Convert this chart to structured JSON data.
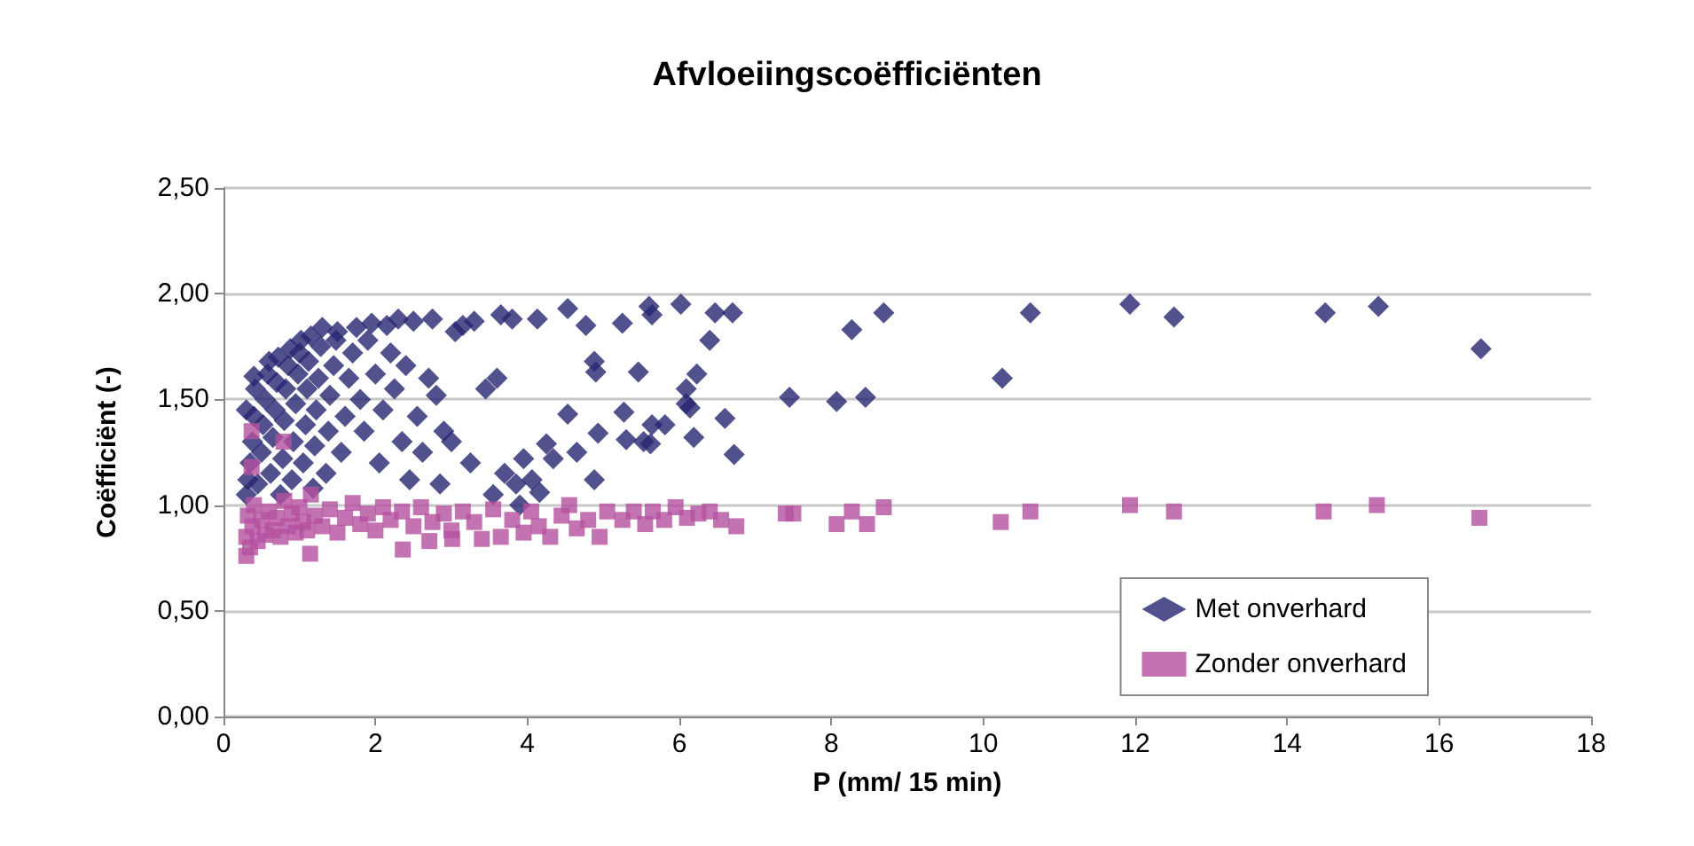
{
  "chart_data": {
    "type": "scatter",
    "title": "Afvloeiingscoëfficiënten",
    "xlabel": "P (mm/ 15 min)",
    "ylabel": "Coëfficiënt (-)",
    "xlim": [
      0,
      18
    ],
    "xticks": [
      0,
      2,
      4,
      6,
      8,
      10,
      12,
      14,
      16,
      18
    ],
    "ylim": [
      0,
      2.5
    ],
    "yticks": [
      {
        "value": 0,
        "label": "0,00"
      },
      {
        "value": 0.5,
        "label": "0,50"
      },
      {
        "value": 1,
        "label": "1,00"
      },
      {
        "value": 1.5,
        "label": "1,50"
      },
      {
        "value": 2,
        "label": "2,00"
      },
      {
        "value": 2.5,
        "label": "2,50"
      }
    ],
    "grid": "y",
    "legend": "bottom right",
    "series": [
      {
        "name": "Met onverhard",
        "color": "#262770",
        "marker": "diamond",
        "x": [
          0.3,
          0.3,
          0.32,
          0.35,
          0.38,
          0.4,
          0.42,
          0.4,
          0.45,
          0.5,
          0.52,
          0.55,
          0.58,
          0.6,
          0.62,
          0.65,
          0.68,
          0.7,
          0.72,
          0.75,
          0.78,
          0.8,
          0.82,
          0.85,
          0.88,
          0.9,
          0.92,
          0.95,
          0.98,
          1.0,
          1.02,
          1.05,
          1.08,
          1.1,
          1.12,
          1.15,
          1.18,
          1.2,
          1.22,
          1.25,
          1.28,
          1.3,
          1.35,
          1.38,
          1.4,
          1.45,
          1.48,
          1.5,
          1.55,
          1.6,
          1.65,
          1.7,
          1.75,
          1.8,
          1.85,
          1.9,
          1.95,
          2.0,
          2.05,
          2.1,
          2.15,
          2.2,
          2.25,
          2.3,
          2.35,
          2.4,
          2.45,
          2.5,
          2.55,
          2.62,
          2.7,
          2.75,
          2.8,
          2.85,
          2.9,
          3.0,
          3.05,
          3.15,
          3.25,
          3.3,
          3.45,
          3.55,
          3.6,
          3.65,
          3.7,
          3.8,
          3.85,
          3.9,
          3.95,
          4.06,
          4.13,
          4.16,
          4.25,
          4.34,
          4.53,
          4.53,
          4.65,
          4.77,
          4.88,
          4.88,
          4.9,
          4.93,
          5.25,
          5.27,
          5.3,
          5.46,
          5.53,
          5.6,
          5.62,
          5.64,
          5.64,
          5.81,
          6.02,
          6.09,
          6.09,
          6.14,
          6.19,
          6.23,
          6.4,
          6.47,
          6.6,
          6.7,
          6.72,
          7.45,
          8.07,
          8.27,
          8.45,
          8.69,
          10.25,
          10.62,
          11.93,
          12.51,
          14.5,
          15.2,
          16.55
        ],
        "values": [
          1.05,
          1.45,
          1.12,
          1.2,
          1.3,
          1.42,
          1.55,
          1.61,
          1.1,
          1.25,
          1.38,
          1.5,
          1.62,
          1.68,
          1.15,
          1.32,
          1.45,
          1.58,
          1.7,
          1.05,
          1.22,
          1.4,
          1.55,
          1.66,
          1.74,
          1.12,
          1.3,
          1.48,
          1.62,
          1.72,
          1.78,
          1.2,
          1.38,
          1.55,
          1.68,
          1.8,
          1.08,
          1.28,
          1.45,
          1.6,
          1.75,
          1.84,
          1.15,
          1.35,
          1.52,
          1.66,
          1.78,
          1.82,
          1.25,
          1.42,
          1.6,
          1.72,
          1.84,
          1.5,
          1.35,
          1.78,
          1.86,
          1.62,
          1.2,
          1.45,
          1.85,
          1.72,
          1.55,
          1.88,
          1.3,
          1.66,
          1.12,
          1.87,
          1.42,
          1.25,
          1.6,
          1.88,
          1.52,
          1.1,
          1.35,
          1.3,
          1.82,
          1.85,
          1.2,
          1.87,
          1.55,
          1.05,
          1.6,
          1.9,
          1.15,
          1.88,
          1.1,
          1.0,
          1.22,
          1.12,
          1.88,
          1.06,
          1.29,
          1.22,
          1.93,
          1.43,
          1.25,
          1.85,
          1.68,
          1.12,
          1.63,
          1.34,
          1.86,
          1.44,
          1.31,
          1.63,
          1.3,
          1.94,
          1.29,
          1.9,
          1.38,
          1.38,
          1.95,
          1.55,
          1.48,
          1.46,
          1.32,
          1.62,
          1.78,
          1.91,
          1.41,
          1.91,
          1.24,
          1.51,
          1.49,
          1.83,
          1.51,
          1.91,
          1.6,
          1.91,
          1.95,
          1.89,
          1.91,
          1.94,
          1.74
        ]
      },
      {
        "name": "Zonder onverhard",
        "color": "#b5509f",
        "marker": "square",
        "x": [
          0.3,
          0.3,
          0.32,
          0.35,
          0.37,
          0.37,
          0.38,
          0.4,
          0.45,
          0.5,
          0.55,
          0.6,
          0.65,
          0.7,
          0.75,
          0.79,
          0.8,
          0.85,
          0.9,
          0.95,
          1.0,
          1.05,
          1.1,
          1.14,
          1.15,
          1.2,
          1.3,
          1.4,
          1.5,
          1.6,
          1.7,
          1.8,
          1.9,
          2.0,
          2.1,
          2.2,
          2.35,
          2.36,
          2.5,
          2.6,
          2.71,
          2.75,
          2.9,
          3.0,
          3.01,
          3.15,
          3.3,
          3.4,
          3.55,
          3.65,
          3.8,
          3.95,
          4.05,
          4.15,
          4.3,
          4.45,
          4.55,
          4.65,
          4.8,
          4.95,
          5.05,
          5.25,
          5.4,
          5.55,
          5.65,
          5.8,
          5.95,
          6.1,
          6.25,
          6.4,
          6.55,
          6.75,
          7.4,
          7.5,
          8.07,
          8.27,
          8.47,
          8.69,
          10.23,
          10.62,
          11.93,
          12.51,
          14.48,
          15.18,
          16.53
        ],
        "values": [
          0.76,
          0.85,
          0.95,
          0.8,
          1.35,
          1.18,
          0.9,
          1.0,
          0.83,
          0.93,
          0.86,
          0.97,
          0.88,
          0.94,
          0.85,
          1.3,
          1.02,
          0.9,
          0.96,
          0.87,
          0.99,
          0.92,
          0.88,
          0.77,
          1.05,
          0.95,
          0.9,
          0.98,
          0.87,
          0.94,
          1.01,
          0.91,
          0.96,
          0.88,
          0.99,
          0.93,
          0.97,
          0.79,
          0.9,
          0.99,
          0.83,
          0.92,
          0.96,
          0.88,
          0.84,
          0.97,
          0.92,
          0.84,
          0.98,
          0.85,
          0.93,
          0.87,
          0.97,
          0.9,
          0.85,
          0.95,
          1.0,
          0.89,
          0.93,
          0.85,
          0.97,
          0.93,
          0.97,
          0.91,
          0.97,
          0.93,
          0.99,
          0.94,
          0.96,
          0.97,
          0.93,
          0.9,
          0.96,
          0.96,
          0.91,
          0.97,
          0.91,
          0.99,
          0.92,
          0.97,
          1.0,
          0.97,
          0.97,
          1.0,
          0.94
        ]
      }
    ]
  }
}
